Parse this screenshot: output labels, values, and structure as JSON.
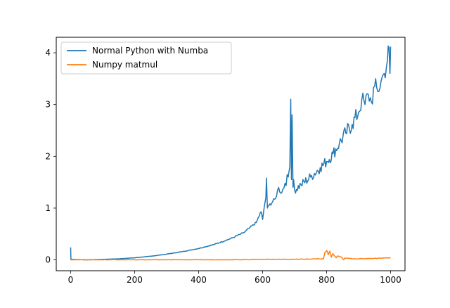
{
  "chart_data": {
    "type": "line",
    "title": "",
    "xlabel": "",
    "ylabel": "",
    "xlim": [
      -45,
      1045
    ],
    "ylim": [
      -0.21,
      4.3
    ],
    "xticks": [
      0,
      200,
      400,
      600,
      800,
      1000
    ],
    "yticks": [
      0,
      1,
      2,
      3,
      4
    ],
    "xtick_labels": [
      "0",
      "200",
      "400",
      "600",
      "800",
      "1000"
    ],
    "ytick_labels": [
      "0",
      "1",
      "2",
      "3",
      "4"
    ],
    "grid": false,
    "legend_position": "top-left",
    "series": [
      {
        "name": "Normal Python with Numba",
        "color": "#1f77b4",
        "x": [
          0,
          1,
          2,
          50,
          100,
          150,
          200,
          250,
          300,
          350,
          400,
          450,
          500,
          540,
          560,
          580,
          595,
          600,
          605,
          610,
          612,
          615,
          620,
          640,
          650,
          660,
          670,
          680,
          685,
          688,
          690,
          692,
          695,
          697,
          700,
          720,
          750,
          780,
          800,
          820,
          840,
          860,
          880,
          900,
          910,
          920,
          930,
          940,
          950,
          960,
          970,
          980,
          990,
          995,
          998,
          1000
        ],
        "y": [
          0.24,
          0.0,
          0.01,
          0.0,
          0.01,
          0.02,
          0.04,
          0.07,
          0.11,
          0.16,
          0.22,
          0.3,
          0.41,
          0.52,
          0.62,
          0.72,
          0.93,
          0.78,
          1.02,
          1.2,
          1.58,
          1.0,
          1.05,
          1.18,
          1.4,
          1.3,
          1.48,
          1.6,
          1.8,
          3.1,
          1.55,
          2.8,
          1.4,
          1.55,
          1.35,
          1.45,
          1.6,
          1.78,
          1.9,
          2.05,
          2.25,
          2.45,
          2.62,
          2.85,
          3.1,
          3.0,
          3.2,
          3.05,
          3.35,
          3.25,
          3.45,
          3.6,
          3.85,
          4.1,
          3.6,
          4.12
        ]
      },
      {
        "name": "Numpy matmul",
        "color": "#ff7f0e",
        "x": [
          0,
          100,
          200,
          300,
          400,
          500,
          600,
          700,
          790,
          795,
          800,
          805,
          810,
          815,
          820,
          830,
          840,
          850,
          860,
          900,
          950,
          1000
        ],
        "y": [
          0.0,
          0.0,
          0.0,
          0.0,
          0.0,
          0.0,
          0.01,
          0.01,
          0.02,
          0.15,
          0.18,
          0.1,
          0.17,
          0.05,
          0.12,
          0.04,
          0.06,
          0.02,
          0.03,
          0.02,
          0.03,
          0.04
        ]
      }
    ]
  }
}
